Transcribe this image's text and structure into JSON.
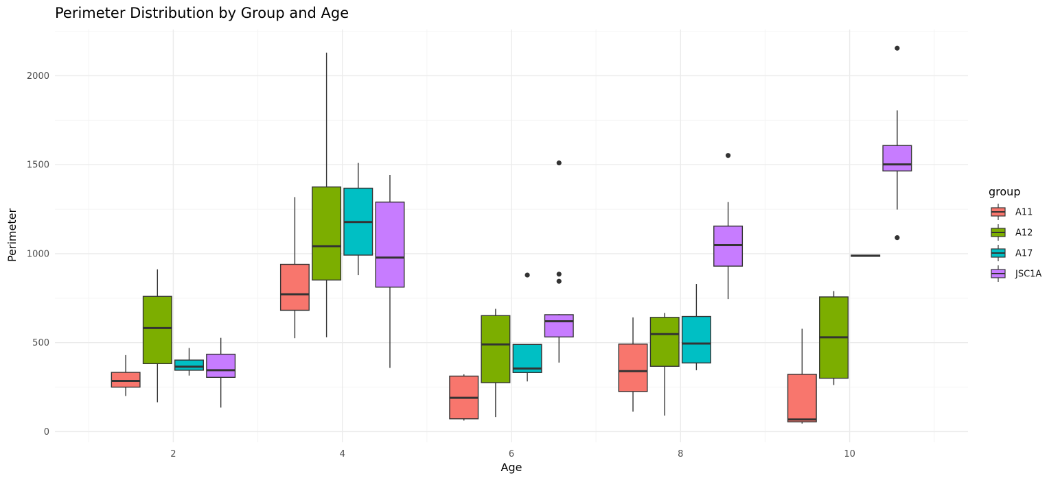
{
  "chart_data": {
    "type": "box",
    "title": "Perimeter Distribution by Group and Age",
    "xlabel": "Age",
    "ylabel": "Perimeter",
    "x_ticks": [
      2,
      4,
      6,
      8,
      10
    ],
    "y_ticks": [
      0,
      500,
      1000,
      1500,
      2000
    ],
    "xlim": [
      0.6,
      11.4
    ],
    "ylim": [
      -60,
      2260
    ],
    "grid": true,
    "legend": {
      "title": "group",
      "position": "right"
    },
    "series": [
      {
        "name": "A11",
        "color": "#F8766D",
        "boxes": [
          {
            "age": 2,
            "whisker_low": 200,
            "q1": 250,
            "median": 285,
            "q3": 333,
            "whisker_high": 430,
            "outliers": []
          },
          {
            "age": 4,
            "whisker_low": 525,
            "q1": 682,
            "median": 772,
            "q3": 940,
            "whisker_high": 1318,
            "outliers": []
          },
          {
            "age": 6,
            "whisker_low": 62,
            "q1": 72,
            "median": 190,
            "q3": 312,
            "whisker_high": 322,
            "outliers": []
          },
          {
            "age": 8,
            "whisker_low": 112,
            "q1": 225,
            "median": 340,
            "q3": 492,
            "whisker_high": 642,
            "outliers": []
          },
          {
            "age": 10,
            "whisker_low": 45,
            "q1": 55,
            "median": 68,
            "q3": 322,
            "whisker_high": 578,
            "outliers": []
          }
        ]
      },
      {
        "name": "A12",
        "color": "#7CAE00",
        "boxes": [
          {
            "age": 2,
            "whisker_low": 165,
            "q1": 382,
            "median": 582,
            "q3": 760,
            "whisker_high": 912,
            "outliers": []
          },
          {
            "age": 4,
            "whisker_low": 530,
            "q1": 852,
            "median": 1042,
            "q3": 1375,
            "whisker_high": 2130,
            "outliers": []
          },
          {
            "age": 6,
            "whisker_low": 82,
            "q1": 275,
            "median": 490,
            "q3": 652,
            "whisker_high": 690,
            "outliers": []
          },
          {
            "age": 8,
            "whisker_low": 90,
            "q1": 367,
            "median": 548,
            "q3": 642,
            "whisker_high": 667,
            "outliers": []
          },
          {
            "age": 10,
            "whisker_low": 262,
            "q1": 300,
            "median": 530,
            "q3": 757,
            "whisker_high": 790,
            "outliers": []
          }
        ]
      },
      {
        "name": "A17",
        "color": "#00BFC4",
        "boxes": [
          {
            "age": 2,
            "whisker_low": 315,
            "q1": 345,
            "median": 365,
            "q3": 402,
            "whisker_high": 470,
            "outliers": []
          },
          {
            "age": 4,
            "whisker_low": 880,
            "q1": 992,
            "median": 1178,
            "q3": 1368,
            "whisker_high": 1510,
            "outliers": []
          },
          {
            "age": 6,
            "whisker_low": 282,
            "q1": 332,
            "median": 355,
            "q3": 490,
            "whisker_high": 490,
            "outliers": [
              880
            ]
          },
          {
            "age": 8,
            "whisker_low": 345,
            "q1": 386,
            "median": 495,
            "q3": 647,
            "whisker_high": 830,
            "outliers": []
          },
          {
            "age": 10,
            "whisker_low": 985,
            "q1": 985,
            "median": 988,
            "q3": 992,
            "whisker_high": 992,
            "outliers": []
          }
        ]
      },
      {
        "name": "JSC1A",
        "color": "#C77CFF",
        "boxes": [
          {
            "age": 2,
            "whisker_low": 135,
            "q1": 305,
            "median": 345,
            "q3": 435,
            "whisker_high": 527,
            "outliers": []
          },
          {
            "age": 4,
            "whisker_low": 358,
            "q1": 812,
            "median": 978,
            "q3": 1290,
            "whisker_high": 1443,
            "outliers": []
          },
          {
            "age": 6,
            "whisker_low": 388,
            "q1": 532,
            "median": 620,
            "q3": 657,
            "whisker_high": 660,
            "outliers": [
              1510,
              885,
              845
            ]
          },
          {
            "age": 8,
            "whisker_low": 745,
            "q1": 930,
            "median": 1048,
            "q3": 1155,
            "whisker_high": 1290,
            "outliers": [
              1552
            ]
          },
          {
            "age": 10,
            "whisker_low": 1248,
            "q1": 1465,
            "median": 1502,
            "q3": 1608,
            "whisker_high": 1805,
            "outliers": [
              2155,
              1090
            ]
          }
        ]
      }
    ]
  },
  "colors": {
    "background": "#ffffff",
    "grid_major": "#ebebeb",
    "grid_minor": "#f4f4f4",
    "box_outline": "#333333",
    "tick_text": "#4d4d4d"
  }
}
